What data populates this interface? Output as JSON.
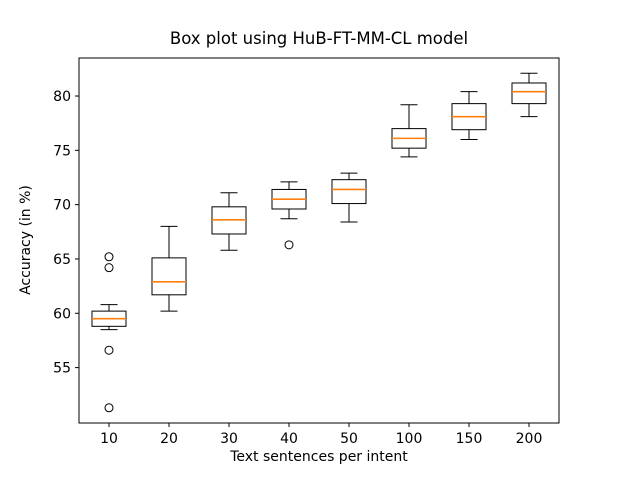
{
  "chart_data": {
    "type": "boxplot",
    "title": "Box plot using HuB-FT-MM-CL model",
    "xlabel": "Text sentences per intent",
    "ylabel": "Accuracy (in %)",
    "categories": [
      "10",
      "20",
      "30",
      "40",
      "50",
      "100",
      "150",
      "200"
    ],
    "yticks": [
      55,
      60,
      65,
      70,
      75,
      80
    ],
    "ylim": [
      49.9,
      83.5
    ],
    "grid": false,
    "legend": false,
    "colors": {
      "median": "#ff7f0e",
      "box_edge": "#000000",
      "axis": "#000000",
      "background": "#ffffff"
    },
    "boxes": [
      {
        "label": "10",
        "whislo": 58.5,
        "q1": 58.8,
        "med": 59.5,
        "q3": 60.2,
        "whishi": 60.8,
        "fliers": [
          65.2,
          64.2,
          56.6,
          51.3
        ]
      },
      {
        "label": "20",
        "whislo": 60.2,
        "q1": 61.7,
        "med": 62.9,
        "q3": 65.1,
        "whishi": 68.0,
        "fliers": []
      },
      {
        "label": "30",
        "whislo": 65.8,
        "q1": 67.3,
        "med": 68.6,
        "q3": 69.8,
        "whishi": 71.1,
        "fliers": []
      },
      {
        "label": "40",
        "whislo": 68.7,
        "q1": 69.6,
        "med": 70.5,
        "q3": 71.4,
        "whishi": 72.1,
        "fliers": [
          66.3
        ]
      },
      {
        "label": "50",
        "whislo": 68.4,
        "q1": 70.1,
        "med": 71.4,
        "q3": 72.3,
        "whishi": 72.9,
        "fliers": []
      },
      {
        "label": "100",
        "whislo": 74.4,
        "q1": 75.2,
        "med": 76.1,
        "q3": 77.0,
        "whishi": 79.2,
        "fliers": []
      },
      {
        "label": "150",
        "whislo": 76.0,
        "q1": 76.9,
        "med": 78.1,
        "q3": 79.3,
        "whishi": 80.4,
        "fliers": []
      },
      {
        "label": "200",
        "whislo": 78.1,
        "q1": 79.3,
        "med": 80.4,
        "q3": 81.2,
        "whishi": 82.1,
        "fliers": []
      }
    ]
  }
}
